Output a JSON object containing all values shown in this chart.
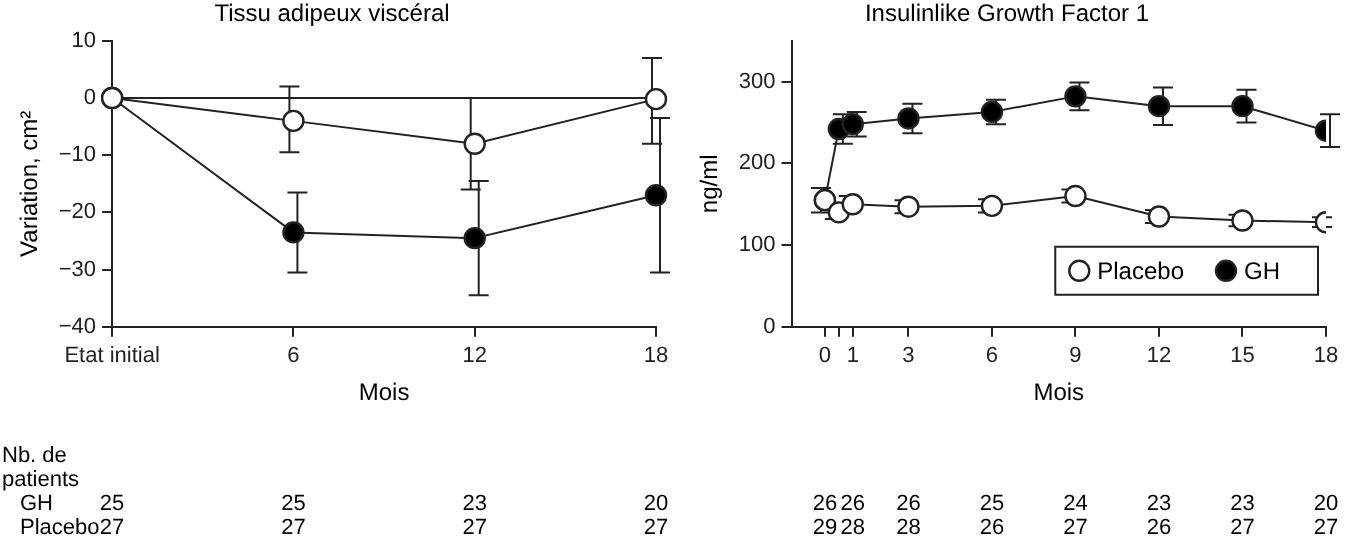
{
  "chart_data": [
    {
      "type": "line",
      "title": "Tissu adipeux viscéral",
      "xlabel": "Mois",
      "ylabel": "Variation, cm²",
      "categories": [
        "Etat initial",
        "6",
        "12",
        "18"
      ],
      "series": [
        {
          "color": "#ffffff",
          "values": [
            0,
            -4,
            -8,
            -0.2
          ],
          "errors": [
            null,
            [
              -9.5,
              2
            ],
            [
              -16,
              0
            ],
            [
              -8,
              7
            ]
          ]
        },
        {
          "color": "#000000",
          "values": [
            0,
            -23.5,
            -24.5,
            -17
          ],
          "errors": [
            null,
            [
              -30.5,
              -16.5
            ],
            [
              -34.5,
              -14.5
            ],
            [
              -30.5,
              -3.5
            ]
          ]
        }
      ],
      "ylim": [
        -40,
        10
      ],
      "yticks": [
        -40,
        -30,
        -20,
        -10,
        0,
        10
      ],
      "grid": false,
      "legend": false,
      "marker": "circle",
      "line_style": "solid",
      "ref_lines": [
        {
          "axis": "y",
          "value": 0
        }
      ],
      "annotations": [
        "Nb. de patients",
        "GH",
        "Placebo",
        "25",
        "25",
        "23",
        "20",
        "27",
        "27",
        "27",
        "27"
      ]
    },
    {
      "type": "line",
      "title": "Insulinlike Growth Factor 1",
      "xlabel": "Mois",
      "ylabel": "ng/ml",
      "x": [
        0,
        0.5,
        1,
        3,
        6,
        9,
        12,
        15,
        18
      ],
      "series": [
        {
          "name": "Placebo",
          "color": "#ffffff",
          "values": [
            155,
            140,
            150,
            147,
            148,
            160,
            135,
            130,
            128
          ],
          "errors": [
            15,
            8,
            10,
            8,
            8,
            8,
            8,
            7,
            6
          ]
        },
        {
          "name": "GH",
          "color": "#000000",
          "values": [
            155,
            242,
            248,
            255,
            263,
            282,
            270,
            270,
            240
          ],
          "errors": [
            null,
            18,
            15,
            18,
            15,
            17,
            23,
            20,
            20
          ]
        }
      ],
      "xlim": [
        -1.2,
        18
      ],
      "xticks": [
        0,
        {
          "value": 0.5,
          "label": null
        },
        1,
        3,
        6,
        9,
        12,
        15,
        18
      ],
      "ylim": [
        0,
        350
      ],
      "yticks": [
        0,
        100,
        200,
        300
      ],
      "grid": false,
      "legend": "bottom right",
      "marker": "circle",
      "line_style": "solid",
      "annotations": [
        "26",
        "26",
        "26",
        "25",
        "24",
        "23",
        "23",
        "20",
        "29",
        "28",
        "28",
        "26",
        "27",
        "26",
        "27",
        "27"
      ]
    }
  ]
}
